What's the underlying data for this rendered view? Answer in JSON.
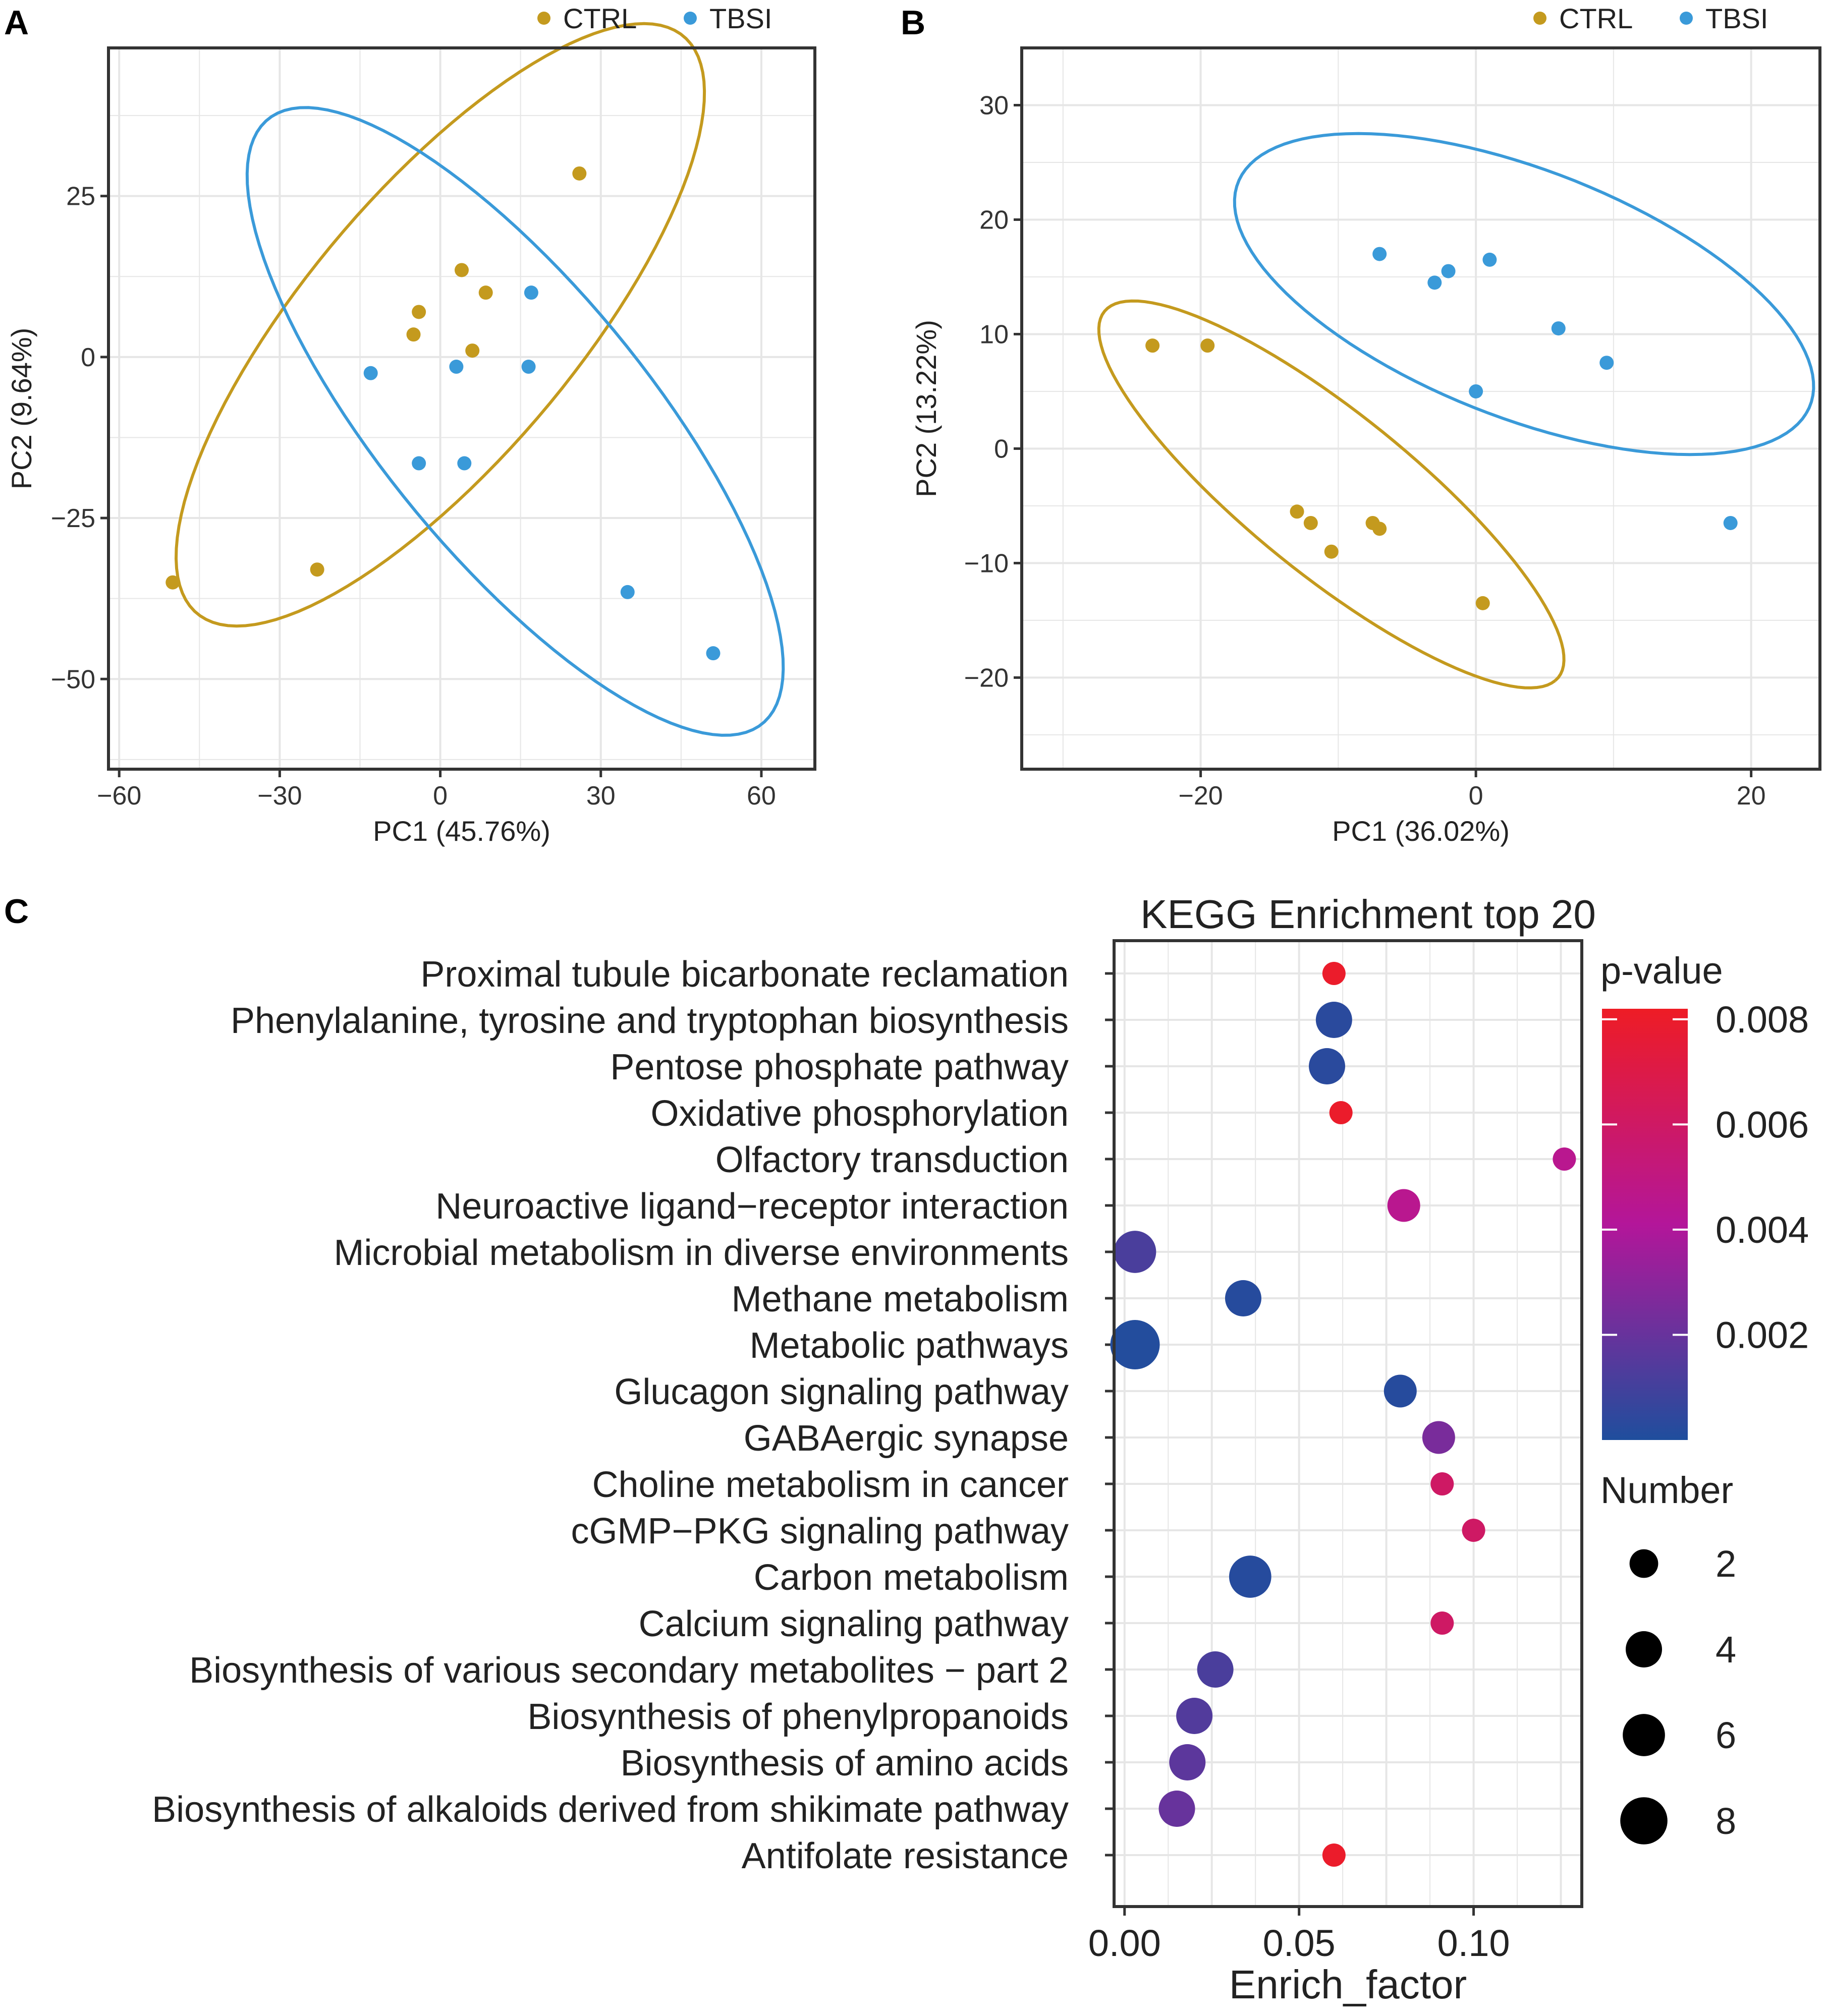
{
  "chart_data": [
    {
      "panel": "A",
      "type": "scatter",
      "xlabel": "PC1 (45.76%)",
      "ylabel": "PC2 (9.64%)",
      "xlim": [
        -62,
        70
      ],
      "ylim": [
        -64,
        48
      ],
      "xticks": [
        -60,
        -30,
        0,
        30,
        60
      ],
      "yticks": [
        -50,
        -25,
        0,
        25
      ],
      "xtick_labels": [
        "−60",
        "−30",
        "0",
        "30",
        "60"
      ],
      "ytick_labels": [
        "−50",
        "−25",
        "0",
        "25"
      ],
      "grid": true,
      "legend": [
        {
          "label": "CTRL",
          "color": "#C49A1E"
        },
        {
          "label": "TBSI",
          "color": "#3A9AD9"
        }
      ],
      "series": [
        {
          "name": "CTRL",
          "color": "#C49A1E",
          "points": [
            [
              -50,
              -35
            ],
            [
              -23,
              -33
            ],
            [
              -4,
              7
            ],
            [
              -5,
              3.5
            ],
            [
              4,
              13.5
            ],
            [
              6,
              1
            ],
            [
              8.5,
              10
            ],
            [
              26,
              28.5
            ]
          ],
          "ellipse": {
            "cx": 0,
            "cy": 5,
            "rx": 64,
            "ry": 23,
            "angle_deg": 43
          }
        },
        {
          "name": "TBSI",
          "color": "#3A9AD9",
          "points": [
            [
              -13,
              -2.5
            ],
            [
              -4,
              -16.5
            ],
            [
              3,
              -1.5
            ],
            [
              4.5,
              -16.5
            ],
            [
              16.5,
              -1.5
            ],
            [
              17,
              10
            ],
            [
              35,
              -36.5
            ],
            [
              51,
              -46
            ]
          ],
          "ellipse": {
            "cx": 14,
            "cy": -10,
            "rx": 66,
            "ry": 23,
            "angle_deg": -44
          }
        }
      ]
    },
    {
      "panel": "B",
      "type": "scatter",
      "xlabel": "PC1 (36.02%)",
      "ylabel": "PC2 (13.22%)",
      "xlim": [
        -33,
        25
      ],
      "ylim": [
        -28,
        35
      ],
      "xticks": [
        -20,
        0,
        20
      ],
      "yticks": [
        -20,
        -10,
        0,
        10,
        20,
        30
      ],
      "xtick_labels": [
        "−20",
        "0",
        "20"
      ],
      "ytick_labels": [
        "−20",
        "−10",
        "0",
        "10",
        "20",
        "30"
      ],
      "grid": true,
      "legend": [
        {
          "label": "CTRL",
          "color": "#C49A1E"
        },
        {
          "label": "TBSI",
          "color": "#3A9AD9"
        }
      ],
      "series": [
        {
          "name": "CTRL",
          "color": "#C49A1E",
          "points": [
            [
              -23.5,
              9
            ],
            [
              -19.5,
              9
            ],
            [
              -13,
              -5.5
            ],
            [
              -12,
              -6.5
            ],
            [
              -10.5,
              -9
            ],
            [
              -7.5,
              -6.5
            ],
            [
              -7,
              -7
            ],
            [
              0.5,
              -13.5
            ]
          ],
          "ellipse": {
            "cx": -10.5,
            "cy": -4,
            "rx": 23,
            "ry": 6.5,
            "angle_deg": -45
          }
        },
        {
          "name": "TBSI",
          "color": "#3A9AD9",
          "points": [
            [
              -7,
              17
            ],
            [
              -3,
              14.5
            ],
            [
              -2,
              15.5
            ],
            [
              0,
              5
            ],
            [
              1,
              16.5
            ],
            [
              6,
              10.5
            ],
            [
              9.5,
              7.5
            ],
            [
              18.5,
              -6.5
            ]
          ],
          "ellipse": {
            "cx": 3.5,
            "cy": 13.5,
            "rx": 23,
            "ry": 10.5,
            "angle_deg": -27
          }
        }
      ]
    },
    {
      "panel": "C",
      "type": "scatter",
      "title": "KEGG Enrichment top 20",
      "xlabel": "Enrich_factor",
      "ylabel": "",
      "xlim": [
        -0.003,
        0.131
      ],
      "xticks": [
        0.0,
        0.05,
        0.1
      ],
      "xtick_labels": [
        "0.00",
        "0.05",
        "0.10"
      ],
      "grid": true,
      "color_legend": {
        "title": "p-value",
        "min": 0,
        "max": 0.0082,
        "ticks": [
          0.002,
          0.004,
          0.006,
          0.008
        ],
        "tick_labels": [
          "0.002",
          "0.004",
          "0.006",
          "0.008"
        ],
        "low_color": "#1F4E9D",
        "mid_color": "#B3169A",
        "high_color": "#EE1C25"
      },
      "size_legend": {
        "title": "Number",
        "values": [
          2,
          4,
          6,
          8
        ],
        "labels": [
          "2",
          "4",
          "6",
          "8"
        ]
      },
      "categories": [
        "Proximal tubule bicarbonate reclamation",
        "Phenylalanine, tyrosine and tryptophan biosynthesis",
        "Pentose phosphate pathway",
        "Oxidative phosphorylation",
        "Olfactory transduction",
        "Neuroactive ligand−receptor interaction",
        "Microbial metabolism in diverse environments",
        "Methane metabolism",
        "Metabolic pathways",
        "Glucagon signaling pathway",
        "GABAergic synapse",
        "Choline metabolism in cancer",
        "cGMP−PKG signaling pathway",
        "Carbon metabolism",
        "Calcium signaling pathway",
        "Biosynthesis of various secondary metabolites − part 2",
        "Biosynthesis of phenylpropanoids",
        "Biosynthesis of amino acids",
        "Biosynthesis of alkaloids derived from shikimate pathway",
        "Antifolate resistance"
      ],
      "enrich_factor": [
        0.06,
        0.06,
        0.058,
        0.062,
        0.126,
        0.08,
        0.003,
        0.034,
        0.003,
        0.079,
        0.09,
        0.091,
        0.1,
        0.036,
        0.091,
        0.026,
        0.02,
        0.018,
        0.015,
        0.06
      ],
      "number": [
        1,
        4,
        4,
        1,
        1,
        3,
        6,
        4,
        9,
        3,
        3,
        1,
        1,
        6,
        1,
        4,
        4,
        4,
        4,
        1
      ],
      "p_value": [
        0.008,
        0.0003,
        0.0003,
        0.008,
        0.0045,
        0.0045,
        0.0012,
        0.0002,
        0.0001,
        0.0002,
        0.0025,
        0.006,
        0.006,
        0.0002,
        0.006,
        0.0012,
        0.0014,
        0.0017,
        0.002,
        0.008
      ]
    }
  ]
}
